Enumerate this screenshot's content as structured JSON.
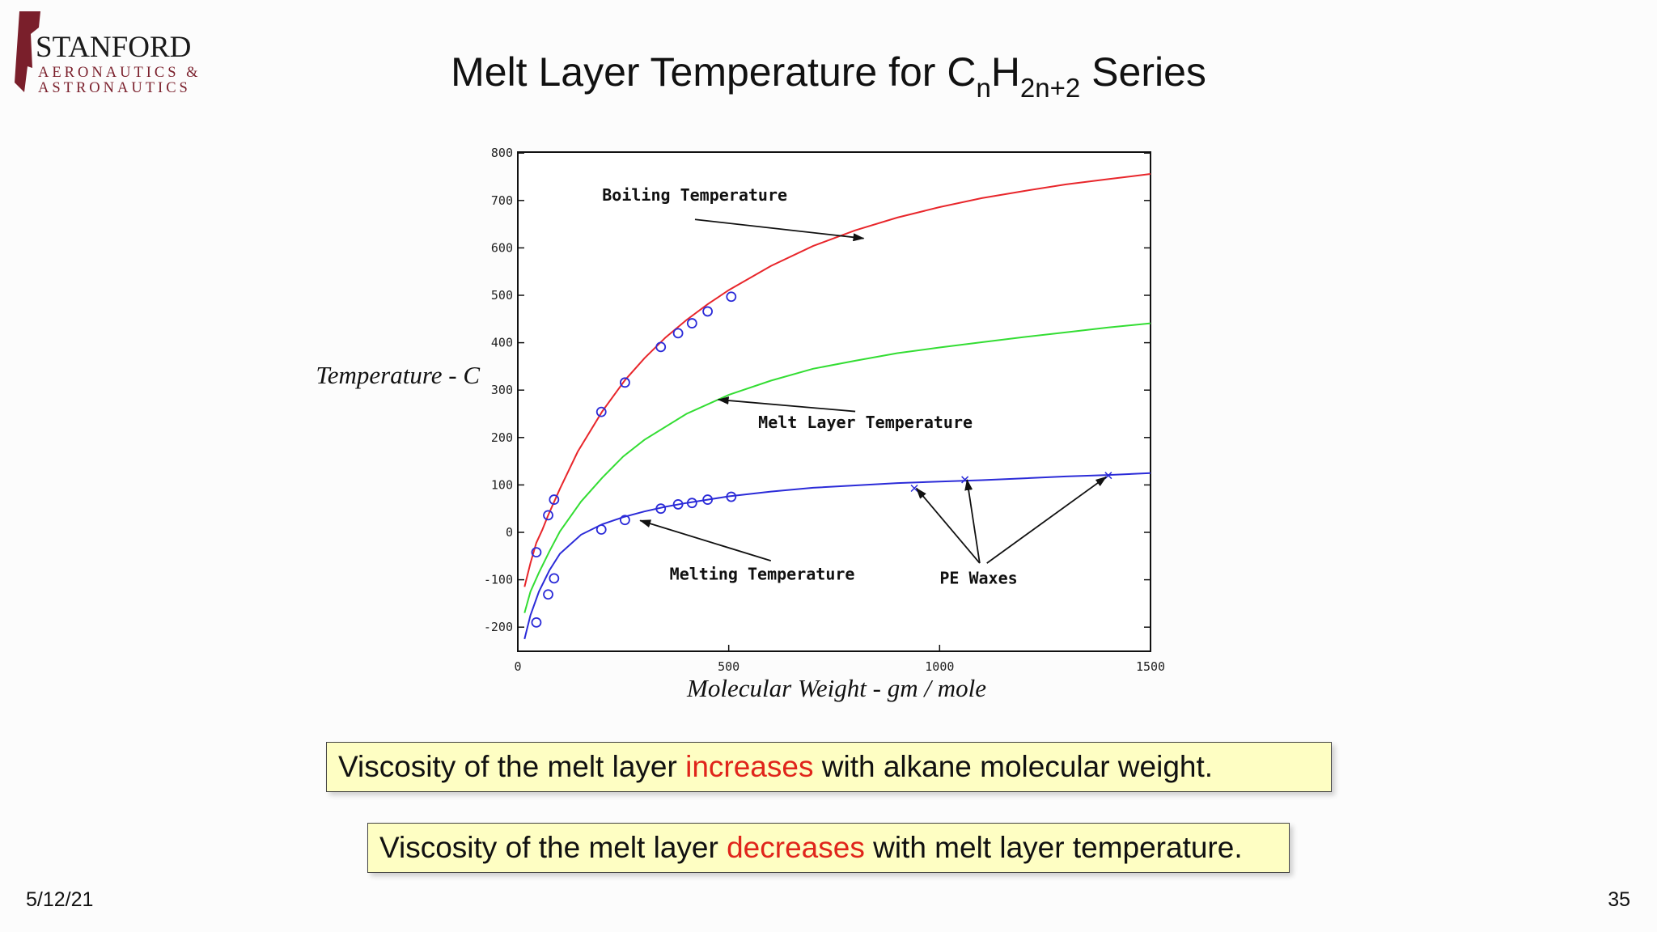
{
  "logo": {
    "line1": "STANFORD",
    "line2": "AERONAUTICS &",
    "line3": "ASTRONAUTICS",
    "colors": {
      "maroon": "#7a1f2b",
      "text": "#1a1a1a"
    }
  },
  "title": {
    "main": "Melt Layer Temperature for C",
    "sub1": "n",
    "mid": "H",
    "sub2": "2n+2",
    "end": " Series"
  },
  "chart_data": {
    "type": "line",
    "xlim": [
      0,
      1500
    ],
    "ylim": [
      -250,
      800
    ],
    "x_ticks": [
      0,
      500,
      1000,
      1500
    ],
    "y_ticks": [
      800,
      700,
      600,
      500,
      400,
      300,
      200,
      100,
      0,
      -100,
      -200
    ],
    "xlabel": "Molecular Weight - gm / mole",
    "ylabel": "Temperature - C",
    "grid": false,
    "legend": "none",
    "series": [
      {
        "name": "Boiling Temperature",
        "color": "#e8262b",
        "x": [
          16,
          30,
          44,
          58,
          72,
          100,
          142,
          200,
          254,
          300,
          350,
          400,
          450,
          500,
          600,
          700,
          800,
          900,
          1000,
          1100,
          1200,
          1300,
          1400,
          1500
        ],
        "y": [
          -115,
          -65,
          -22,
          5,
          36,
          92,
          170,
          255,
          321,
          367,
          411,
          448,
          481,
          511,
          562,
          604,
          637,
          664,
          686,
          705,
          720,
          734,
          745,
          756
        ]
      },
      {
        "name": "Melt Layer Temperature",
        "color": "#33dd33",
        "x": [
          16,
          30,
          50,
          75,
          100,
          150,
          200,
          250,
          300,
          400,
          500,
          600,
          700,
          800,
          900,
          1000,
          1100,
          1200,
          1300,
          1400,
          1500
        ],
        "y": [
          -170,
          -125,
          -85,
          -40,
          2,
          65,
          115,
          160,
          195,
          250,
          290,
          320,
          345,
          362,
          378,
          390,
          401,
          412,
          422,
          432,
          441
        ]
      },
      {
        "name": "Melting Temperature",
        "color": "#2b2bd8",
        "x": [
          16,
          30,
          50,
          75,
          100,
          150,
          200,
          250,
          300,
          350,
          400,
          450,
          500,
          600,
          700,
          800,
          900,
          1000,
          1100,
          1200,
          1300,
          1400,
          1500
        ],
        "y": [
          -225,
          -175,
          -125,
          -80,
          -45,
          -5,
          17,
          32,
          44,
          54,
          62,
          69,
          76,
          86,
          94,
          99,
          104,
          107,
          110,
          114,
          118,
          121,
          125
        ]
      }
    ],
    "markers": [
      {
        "shape": "circle",
        "color": "#2b2bd8",
        "points": [
          [
            44,
            -42
          ],
          [
            72,
            36
          ],
          [
            86,
            69
          ],
          [
            198,
            254
          ],
          [
            254,
            316
          ],
          [
            339,
            391
          ],
          [
            380,
            420
          ],
          [
            413,
            441
          ],
          [
            450,
            466
          ],
          [
            506,
            497
          ],
          [
            44,
            -190
          ],
          [
            72,
            -131
          ],
          [
            86,
            -97
          ],
          [
            198,
            6
          ],
          [
            254,
            26
          ],
          [
            339,
            50
          ],
          [
            380,
            59
          ],
          [
            413,
            62
          ],
          [
            450,
            69
          ],
          [
            506,
            75
          ]
        ]
      },
      {
        "shape": "x",
        "color": "#2b2bd8",
        "points": [
          [
            940,
            93
          ],
          [
            1060,
            111
          ],
          [
            1400,
            120
          ]
        ]
      }
    ],
    "annotations": [
      {
        "text": "Boiling Temperature",
        "text_x": 200,
        "text_y": 700,
        "arrows": [
          {
            "from": [
              420,
              660
            ],
            "to": [
              820,
              620
            ]
          }
        ]
      },
      {
        "text": "Melt Layer Temperature",
        "text_x": 570,
        "text_y": 220,
        "arrows": [
          {
            "from": [
              800,
              255
            ],
            "to": [
              475,
              280
            ]
          }
        ]
      },
      {
        "text": "Melting Temperature",
        "text_x": 360,
        "text_y": -100,
        "arrows": [
          {
            "from": [
              600,
              -60
            ],
            "to": [
              290,
              25
            ]
          }
        ]
      },
      {
        "text": "PE Waxes",
        "text_x": 1000,
        "text_y": -108,
        "arrows": [
          {
            "from": [
              1095,
              -65
            ],
            "to": [
              945,
              93
            ]
          },
          {
            "from": [
              1095,
              -65
            ],
            "to": [
              1065,
              111
            ]
          },
          {
            "from": [
              1112,
              -65
            ],
            "to": [
              1395,
              117
            ]
          }
        ]
      }
    ]
  },
  "notes": [
    {
      "before": "Viscosity of the melt layer ",
      "highlight": "increases",
      "after": " with alkane molecular weight."
    },
    {
      "before": "Viscosity of the melt layer ",
      "highlight": "decreases",
      "after": " with melt layer temperature."
    }
  ],
  "footer": {
    "date": "5/12/21",
    "page": "35"
  }
}
